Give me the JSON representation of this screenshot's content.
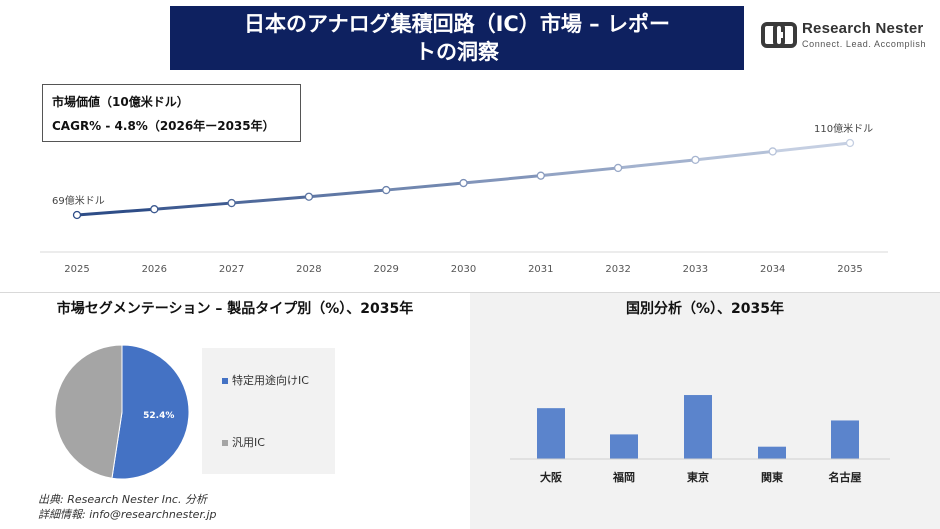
{
  "header": {
    "title_line1": "日本のアナログ集積回路（IC）市場 – レポー",
    "title_line2": "トの洞察"
  },
  "logo": {
    "name": "Research Nester",
    "tagline": "Connect. Lead. Accomplish",
    "colors": {
      "mark": "#3a3a3a"
    }
  },
  "info": {
    "market_value": "市場価値（10億米ドル）",
    "cagr": "CAGR% - 4.8%（2026年ー2035年）"
  },
  "source": {
    "line1": "出典: Research Nester Inc. 分析",
    "line2": "詳細情報: info@researchnester.jp"
  },
  "chart_data": [
    {
      "type": "line",
      "x": [
        "2025",
        "2026",
        "2027",
        "2028",
        "2029",
        "2030",
        "2031",
        "2032",
        "2033",
        "2034",
        "2035"
      ],
      "values": [
        69,
        72.3,
        75.8,
        79.4,
        83.2,
        87.2,
        91.4,
        95.8,
        100.4,
        105.2,
        110
      ],
      "annotations": {
        "start": "69億米ドル",
        "end": "110億米ドル"
      },
      "colors": {
        "start": "#2e4d87",
        "end": "#c5cfe2"
      }
    },
    {
      "type": "pie",
      "title": "市場セグメンテーション – 製品タイプ別（%）、2035年",
      "slices": [
        {
          "label": "特定用途向けIC",
          "value": 52.4,
          "display": "52.4%",
          "color": "#4472c4"
        },
        {
          "label": "汎用IC",
          "value": 47.6,
          "display": "",
          "color": "#a5a5a5"
        }
      ]
    },
    {
      "type": "bar",
      "title": "国別分析（%）、2035年",
      "categories": [
        "大阪",
        "福岡",
        "東京",
        "関東",
        "名古屋"
      ],
      "values": [
        62,
        30,
        78,
        15,
        47
      ],
      "ylim": [
        0,
        100
      ],
      "color": "#5b84cc"
    }
  ]
}
